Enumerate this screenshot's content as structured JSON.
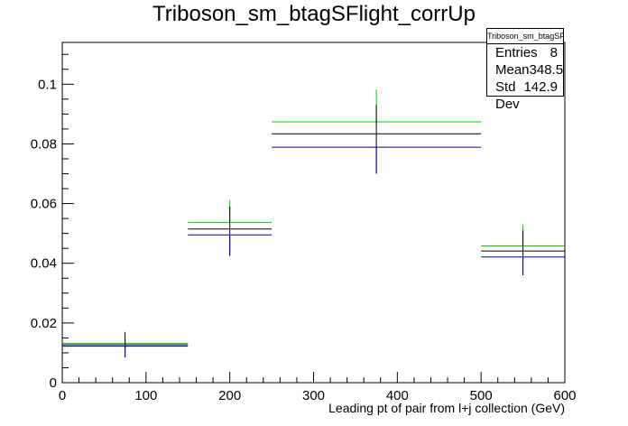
{
  "chart_data": {
    "type": "histogram",
    "title": "Triboson_sm_btagSFlight_corrUp",
    "xlabel": "Leading pt of pair from l+j collection (GeV)",
    "ylabel": "",
    "xlim": [
      0,
      600
    ],
    "ylim": [
      0,
      0.114
    ],
    "x_ticks": [
      0,
      100,
      200,
      300,
      400,
      500,
      600
    ],
    "y_ticks": [
      0,
      0.02,
      0.04,
      0.06,
      0.08,
      0.1
    ],
    "bins": [
      {
        "xlow": 0,
        "xhigh": 150,
        "center": 75
      },
      {
        "xlow": 150,
        "xhigh": 250,
        "center": 200
      },
      {
        "xlow": 250,
        "xhigh": 500,
        "center": 375
      },
      {
        "xlow": 500,
        "xhigh": 600,
        "center": 550
      }
    ],
    "series": [
      {
        "color": "#00cc00",
        "values": [
          0.0132,
          0.0537,
          0.0874,
          0.0458
        ],
        "err_high": [
          0.0152,
          0.0612,
          0.0982,
          0.053
        ]
      },
      {
        "color": "#000000",
        "values": [
          0.0127,
          0.0515,
          0.0834,
          0.0441
        ],
        "err_low": [
          0.0085,
          0.0425,
          0.07,
          0.036
        ],
        "err_high": [
          0.017,
          0.059,
          0.093,
          0.051
        ]
      },
      {
        "color": "#0000aa",
        "values": [
          0.0122,
          0.0495,
          0.0789,
          0.0421
        ],
        "err_low": [
          0.0085,
          0.0425,
          0.07,
          0.036
        ]
      }
    ],
    "grid": false,
    "legend": "none"
  },
  "stats": {
    "title": "Triboson_sm_btagSFlight_corrUp",
    "entries_label": "Entries",
    "entries": "8",
    "mean_label": "Mean",
    "mean": "348.5",
    "std_label": "Std Dev",
    "std": "142.9"
  }
}
